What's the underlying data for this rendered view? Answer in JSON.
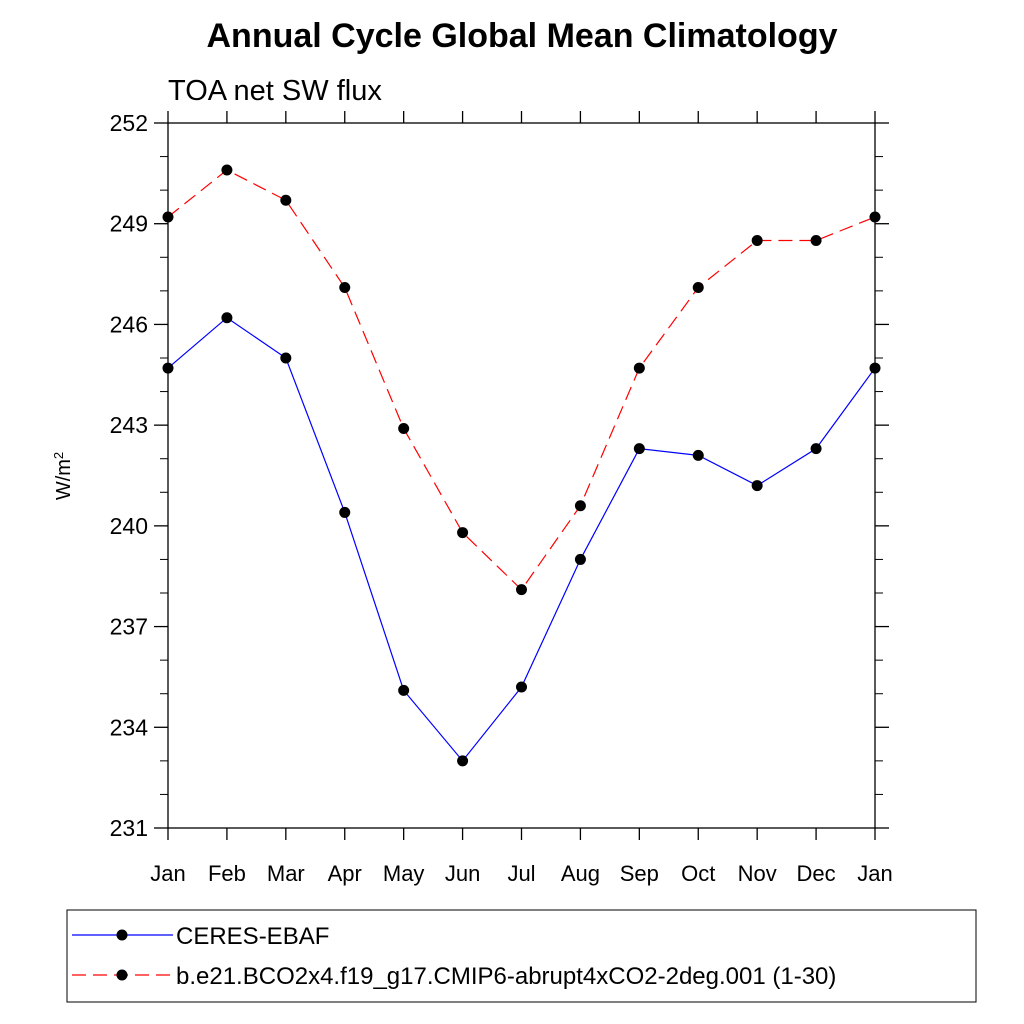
{
  "chart_data": {
    "type": "line",
    "title": "Annual Cycle Global Mean Climatology",
    "subtitle": "TOA net SW flux",
    "ylabel": "W/m",
    "ylabel_superscript": "2",
    "ylim": [
      231,
      252
    ],
    "yticks": [
      231,
      234,
      237,
      240,
      243,
      246,
      249,
      252
    ],
    "ytick_labels": [
      "231",
      "234",
      "237",
      "240",
      "243",
      "246",
      "249",
      "252"
    ],
    "categories": [
      "Jan",
      "Feb",
      "Mar",
      "Apr",
      "May",
      "Jun",
      "Jul",
      "Aug",
      "Sep",
      "Oct",
      "Nov",
      "Dec",
      "Jan"
    ],
    "series": [
      {
        "name": "CERES-EBAF",
        "color": "#0000ff",
        "dashed": false,
        "values": [
          244.7,
          246.2,
          245.0,
          240.4,
          235.1,
          233.0,
          235.2,
          239.0,
          242.3,
          242.1,
          241.2,
          242.3,
          244.7
        ]
      },
      {
        "name": "b.e21.BCO2x4.f19_g17.CMIP6-abrupt4xCO2-2deg.001 (1-30)",
        "color": "#ff0000",
        "dashed": true,
        "values": [
          249.2,
          250.6,
          249.7,
          247.1,
          242.9,
          239.8,
          238.1,
          240.6,
          244.7,
          247.1,
          248.5,
          248.5,
          249.2
        ]
      }
    ],
    "legend_position": "bottom"
  }
}
